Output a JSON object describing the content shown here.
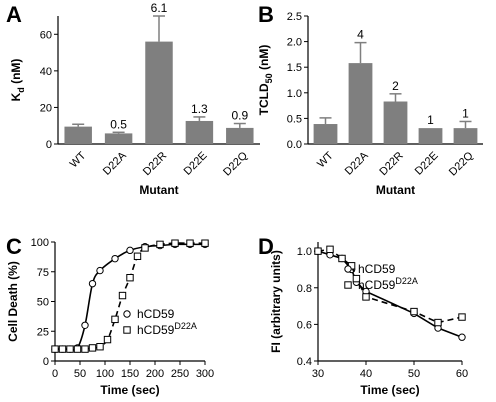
{
  "chart_data": [
    {
      "panel": "A",
      "type": "bar",
      "categories": [
        "WT",
        "D22A",
        "D22R",
        "D22E",
        "D22Q"
      ],
      "values": [
        9.5,
        5.8,
        56,
        12.6,
        8.8
      ],
      "errors": [
        1.3,
        0.6,
        14,
        2.2,
        2.4
      ],
      "data_labels": [
        "",
        "0.5",
        "6.1",
        "1.3",
        "0.9"
      ],
      "ylabel": "K",
      "ylabel_sub": "d",
      "ylabel_unit": " (nM)",
      "xlabel": "Mutant",
      "ylim": [
        0,
        70
      ],
      "yticks": [
        0,
        20,
        40,
        60
      ],
      "bar_color": "#7f7f7f"
    },
    {
      "panel": "B",
      "type": "bar",
      "categories": [
        "WT",
        "D22A",
        "D22R",
        "D22E",
        "D22Q"
      ],
      "values": [
        0.39,
        1.58,
        0.83,
        0.31,
        0.31
      ],
      "errors": [
        0.12,
        0.4,
        0.15,
        0.0,
        0.13
      ],
      "data_labels": [
        "",
        "4",
        "2",
        "1",
        "1"
      ],
      "ylabel": "TCLD",
      "ylabel_sub": "50",
      "ylabel_unit": " (nM)",
      "xlabel": "Mutant",
      "ylim": [
        0,
        2.5
      ],
      "yticks": [
        0.0,
        0.5,
        1.0,
        1.5,
        2.0,
        2.5
      ],
      "ytick_labels": [
        "0.0",
        "0.5",
        "1.0",
        "1.5",
        "2.0",
        "2.5"
      ],
      "bar_color": "#7f7f7f"
    },
    {
      "panel": "C",
      "type": "line",
      "xlabel": "Time (sec)",
      "ylabel": "Cell Death (%)",
      "xlim": [
        0,
        300
      ],
      "ylim": [
        0,
        100
      ],
      "xticks": [
        0,
        50,
        100,
        150,
        200,
        250,
        300
      ],
      "yticks": [
        0,
        25,
        50,
        75,
        100
      ],
      "series": [
        {
          "name": "hCD59",
          "name_sup": "",
          "marker": "circle",
          "dash": false,
          "x": [
            0,
            15,
            30,
            45,
            60,
            75,
            90,
            120,
            150,
            180,
            210,
            240,
            270,
            300
          ],
          "y": [
            10,
            10,
            10,
            11,
            30,
            65,
            76,
            86,
            93,
            96,
            97,
            98,
            98,
            98
          ]
        },
        {
          "name": "hCD59",
          "name_sup": "D22A",
          "marker": "square",
          "dash": true,
          "x": [
            0,
            15,
            30,
            45,
            60,
            75,
            90,
            105,
            120,
            135,
            150,
            165,
            180,
            210,
            240,
            270,
            300
          ],
          "y": [
            10,
            10,
            10,
            10,
            10,
            11,
            12,
            18,
            35,
            55,
            70,
            88,
            95,
            98,
            99,
            99,
            99
          ]
        }
      ]
    },
    {
      "panel": "D",
      "type": "line",
      "xlabel": "Time (sec)",
      "ylabel": "FI (arbitrary units)",
      "xlim": [
        30,
        60
      ],
      "ylim": [
        0.4,
        1.05
      ],
      "xticks": [
        30,
        40,
        50,
        60
      ],
      "yticks": [
        0.4,
        0.6,
        0.8,
        1.0
      ],
      "ytick_labels": [
        "0.4",
        "0.6",
        "0.8",
        "1.0"
      ],
      "series": [
        {
          "name": "hCD59",
          "name_sup": "",
          "marker": "circle",
          "dash": false,
          "x": [
            30,
            32.5,
            35,
            37,
            38,
            40,
            50,
            55,
            60
          ],
          "y": [
            1.0,
            0.98,
            0.96,
            0.9,
            0.83,
            0.78,
            0.66,
            0.58,
            0.53
          ]
        },
        {
          "name": "hCD59",
          "name_sup": "D22A",
          "marker": "square",
          "dash": true,
          "x": [
            30,
            32.5,
            35,
            37,
            38,
            40,
            50,
            55,
            60
          ],
          "y": [
            1.0,
            1.01,
            0.96,
            0.92,
            0.85,
            0.75,
            0.67,
            0.61,
            0.64
          ]
        }
      ]
    }
  ]
}
